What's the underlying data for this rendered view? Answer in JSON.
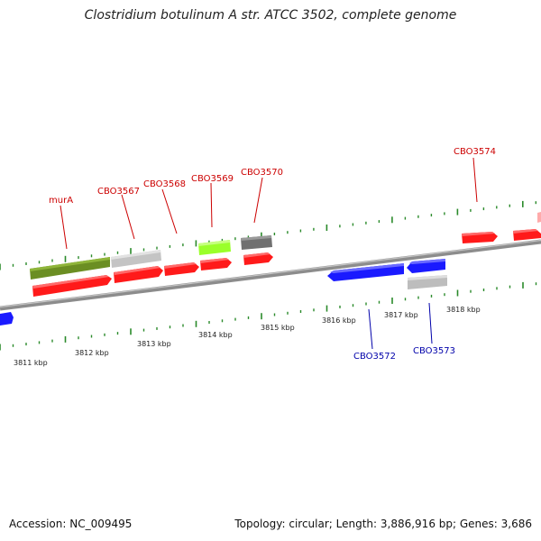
{
  "title": "Clostridium botulinum A str. ATCC 3502, complete genome",
  "footer": {
    "accession": "Accession: NC_009495",
    "summary": "Topology: circular; Length: 3,886,916 bp; Genes: 3,686"
  },
  "colors": {
    "forward_gene": "#ff1a1a",
    "reverse_gene": "#1a1aff",
    "forward_label": "#cc0000",
    "reverse_label": "#0000aa",
    "tick": "#2a8a2a",
    "backbone": "#8c8c8c",
    "olive_feature": "#6b8e23",
    "lightgray_feature": "#c8c8c8",
    "lime_feature": "#9aff2a",
    "darkgray_feature": "#707070"
  },
  "scale_labels": [
    "3811 kbp",
    "3812 kbp",
    "3813 kbp",
    "3814 kbp",
    "3815 kbp",
    "3816 kbp",
    "3817 kbp",
    "3818 kbp"
  ],
  "forward_gene_labels": [
    "murA",
    "CBO3567",
    "CBO3568",
    "CBO3569",
    "CBO3570",
    "CBO3574"
  ],
  "reverse_gene_labels": [
    "CBO3572",
    "CBO3573"
  ]
}
